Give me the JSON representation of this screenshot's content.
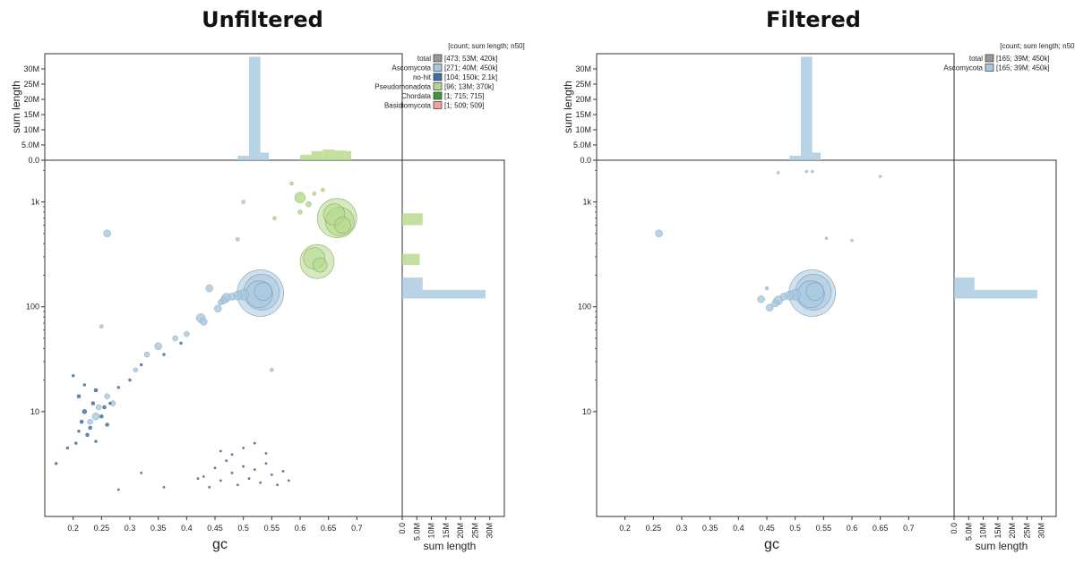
{
  "chart_data": [
    {
      "type": "scatter",
      "title": "Unfiltered",
      "xlabel": "gc",
      "ylabel": "",
      "top_hist_ylabel": "sum length",
      "right_hist_xlabel": "sum length",
      "x_ticks": [
        "0.2",
        "0.25",
        "0.3",
        "0.35",
        "0.4",
        "0.45",
        "0.5",
        "0.55",
        "0.6",
        "0.65",
        "0.7"
      ],
      "x_tick_values": [
        0.2,
        0.25,
        0.3,
        0.35,
        0.4,
        0.45,
        0.5,
        0.55,
        0.6,
        0.65,
        0.7
      ],
      "xlim": [
        0.15,
        0.78
      ],
      "y_scale": "log",
      "y_ticks": [
        "10",
        "100",
        "1k"
      ],
      "y_tick_values": [
        10,
        100,
        1000
      ],
      "ylim": [
        1,
        2500
      ],
      "hist_ticks": [
        "0.0",
        "5.0M",
        "10M",
        "15M",
        "20M",
        "25M",
        "30M"
      ],
      "hist_tick_values": [
        0,
        5,
        10,
        15,
        20,
        25,
        30
      ],
      "hist_lim_M": [
        0,
        35
      ],
      "legend": {
        "header": "[count; sum length; n50]",
        "entries": [
          {
            "name": "total",
            "stats": "[473; 53M; 420k]",
            "color": "#999999"
          },
          {
            "name": "Ascomycota",
            "stats": "[271; 40M; 450k]",
            "color": "#a6c8e0"
          },
          {
            "name": "no-hit",
            "stats": "[104; 150k; 2.1k]",
            "color": "#3f6fa8"
          },
          {
            "name": "Pseudomonadota",
            "stats": "[96; 13M; 370k]",
            "color": "#b5d88a"
          },
          {
            "name": "Chordata",
            "stats": "[1; 715; 715]",
            "color": "#3a9a3a"
          },
          {
            "name": "Basidiomycota",
            "stats": "[1; 509; 509]",
            "color": "#f0a0a0"
          }
        ]
      },
      "top_hist": [
        {
          "series": "Ascomycota",
          "color": "#a6c8e0",
          "bins": [
            [
              0.49,
              0.51,
              1.5
            ],
            [
              0.51,
              0.53,
              34
            ],
            [
              0.53,
              0.545,
              2.5
            ]
          ]
        },
        {
          "series": "Pseudomonadota",
          "color": "#b5d88a",
          "bins": [
            [
              0.6,
              0.62,
              1.8
            ],
            [
              0.62,
              0.64,
              3.0
            ],
            [
              0.64,
              0.66,
              3.5
            ],
            [
              0.66,
              0.68,
              3.2
            ],
            [
              0.68,
              0.69,
              3.0
            ]
          ]
        }
      ],
      "right_hist": [
        {
          "series": "Ascomycota",
          "color": "#a6c8e0",
          "bins": [
            [
              120,
              145,
              28.5
            ],
            [
              145,
              190,
              7
            ]
          ]
        },
        {
          "series": "Pseudomonadota",
          "color": "#b5d88a",
          "bins": [
            [
              250,
              320,
              6
            ],
            [
              600,
              780,
              7
            ]
          ]
        }
      ],
      "points": [
        {
          "gc": 0.53,
          "len": 135,
          "r": 26,
          "series": "Ascomycota"
        },
        {
          "gc": 0.532,
          "len": 138,
          "r": 20,
          "series": "Ascomycota"
        },
        {
          "gc": 0.528,
          "len": 132,
          "r": 15,
          "series": "Ascomycota"
        },
        {
          "gc": 0.535,
          "len": 140,
          "r": 10,
          "series": "Ascomycota"
        },
        {
          "gc": 0.5,
          "len": 130,
          "r": 6,
          "series": "Ascomycota"
        },
        {
          "gc": 0.49,
          "len": 128,
          "r": 5,
          "series": "Ascomycota"
        },
        {
          "gc": 0.48,
          "len": 125,
          "r": 4,
          "series": "Ascomycota"
        },
        {
          "gc": 0.47,
          "len": 122,
          "r": 5,
          "series": "Ascomycota"
        },
        {
          "gc": 0.465,
          "len": 115,
          "r": 4,
          "series": "Ascomycota"
        },
        {
          "gc": 0.46,
          "len": 110,
          "r": 3,
          "series": "Ascomycota"
        },
        {
          "gc": 0.44,
          "len": 150,
          "r": 4,
          "series": "Ascomycota"
        },
        {
          "gc": 0.455,
          "len": 96,
          "r": 4,
          "series": "Ascomycota"
        },
        {
          "gc": 0.425,
          "len": 78,
          "r": 5,
          "series": "Ascomycota"
        },
        {
          "gc": 0.43,
          "len": 72,
          "r": 4,
          "series": "Ascomycota"
        },
        {
          "gc": 0.26,
          "len": 500,
          "r": 4,
          "series": "Ascomycota"
        },
        {
          "gc": 0.35,
          "len": 42,
          "r": 4,
          "series": "Ascomycota"
        },
        {
          "gc": 0.4,
          "len": 55,
          "r": 3,
          "series": "Ascomycota"
        },
        {
          "gc": 0.38,
          "len": 50,
          "r": 3,
          "series": "Ascomycota"
        },
        {
          "gc": 0.33,
          "len": 35,
          "r": 3,
          "series": "Ascomycota"
        },
        {
          "gc": 0.31,
          "len": 25,
          "r": 2.5,
          "series": "Ascomycota"
        },
        {
          "gc": 0.24,
          "len": 9,
          "r": 4,
          "series": "Ascomycota"
        },
        {
          "gc": 0.245,
          "len": 11,
          "r": 3,
          "series": "Ascomycota"
        },
        {
          "gc": 0.23,
          "len": 8,
          "r": 3,
          "series": "Ascomycota"
        },
        {
          "gc": 0.26,
          "len": 14,
          "r": 3,
          "series": "Ascomycota"
        },
        {
          "gc": 0.27,
          "len": 12,
          "r": 3,
          "series": "Ascomycota"
        },
        {
          "gc": 0.25,
          "len": 65,
          "r": 2,
          "series": "Ascomycota"
        },
        {
          "gc": 0.5,
          "len": 1000,
          "r": 2,
          "series": "Ascomycota"
        },
        {
          "gc": 0.55,
          "len": 25,
          "r": 2,
          "series": "Ascomycota"
        },
        {
          "gc": 0.49,
          "len": 440,
          "r": 2,
          "series": "Ascomycota"
        },
        {
          "gc": 0.665,
          "len": 700,
          "r": 22,
          "series": "Pseudomonadota"
        },
        {
          "gc": 0.67,
          "len": 650,
          "r": 16,
          "series": "Pseudomonadota"
        },
        {
          "gc": 0.66,
          "len": 760,
          "r": 12,
          "series": "Pseudomonadota"
        },
        {
          "gc": 0.675,
          "len": 600,
          "r": 9,
          "series": "Pseudomonadota"
        },
        {
          "gc": 0.63,
          "len": 270,
          "r": 19,
          "series": "Pseudomonadota"
        },
        {
          "gc": 0.625,
          "len": 290,
          "r": 12,
          "series": "Pseudomonadota"
        },
        {
          "gc": 0.635,
          "len": 250,
          "r": 8,
          "series": "Pseudomonadota"
        },
        {
          "gc": 0.6,
          "len": 1100,
          "r": 6,
          "series": "Pseudomonadota"
        },
        {
          "gc": 0.615,
          "len": 950,
          "r": 3,
          "series": "Pseudomonadota"
        },
        {
          "gc": 0.6,
          "len": 800,
          "r": 2.5,
          "series": "Pseudomonadota"
        },
        {
          "gc": 0.625,
          "len": 1200,
          "r": 2,
          "series": "Pseudomonadota"
        },
        {
          "gc": 0.585,
          "len": 1500,
          "r": 2,
          "series": "Pseudomonadota"
        },
        {
          "gc": 0.64,
          "len": 1300,
          "r": 2,
          "series": "Pseudomonadota"
        },
        {
          "gc": 0.555,
          "len": 700,
          "r": 2,
          "series": "Pseudomonadota"
        },
        {
          "gc": 0.2,
          "len": 22,
          "r": 1.5,
          "series": "no-hit"
        },
        {
          "gc": 0.21,
          "len": 14,
          "r": 2,
          "series": "no-hit"
        },
        {
          "gc": 0.22,
          "len": 10,
          "r": 2.5,
          "series": "no-hit"
        },
        {
          "gc": 0.215,
          "len": 8,
          "r": 2,
          "series": "no-hit"
        },
        {
          "gc": 0.225,
          "len": 6,
          "r": 2,
          "series": "no-hit"
        },
        {
          "gc": 0.23,
          "len": 7,
          "r": 2,
          "series": "no-hit"
        },
        {
          "gc": 0.205,
          "len": 5,
          "r": 1.5,
          "series": "no-hit"
        },
        {
          "gc": 0.235,
          "len": 12,
          "r": 2,
          "series": "no-hit"
        },
        {
          "gc": 0.24,
          "len": 16,
          "r": 2,
          "series": "no-hit"
        },
        {
          "gc": 0.19,
          "len": 4.5,
          "r": 1.5,
          "series": "no-hit"
        },
        {
          "gc": 0.17,
          "len": 3.2,
          "r": 1.5,
          "series": "no-hit"
        },
        {
          "gc": 0.22,
          "len": 18,
          "r": 1.5,
          "series": "no-hit"
        },
        {
          "gc": 0.25,
          "len": 9,
          "r": 2,
          "series": "no-hit"
        },
        {
          "gc": 0.255,
          "len": 11,
          "r": 2,
          "series": "no-hit"
        },
        {
          "gc": 0.26,
          "len": 7.5,
          "r": 2,
          "series": "no-hit"
        },
        {
          "gc": 0.265,
          "len": 12,
          "r": 1.5,
          "series": "no-hit"
        },
        {
          "gc": 0.28,
          "len": 17,
          "r": 1.5,
          "series": "no-hit"
        },
        {
          "gc": 0.32,
          "len": 28,
          "r": 1.5,
          "series": "no-hit"
        },
        {
          "gc": 0.36,
          "len": 35,
          "r": 1.5,
          "series": "no-hit"
        },
        {
          "gc": 0.39,
          "len": 45,
          "r": 1.5,
          "series": "no-hit"
        },
        {
          "gc": 0.3,
          "len": 20,
          "r": 1.5,
          "series": "no-hit"
        },
        {
          "gc": 0.24,
          "len": 5.2,
          "r": 1.5,
          "series": "no-hit"
        },
        {
          "gc": 0.21,
          "len": 6.5,
          "r": 1.5,
          "series": "no-hit"
        },
        {
          "gc": 0.43,
          "len": 2.4,
          "r": 1.2,
          "series": "no-hit"
        },
        {
          "gc": 0.45,
          "len": 2.9,
          "r": 1.2,
          "series": "no-hit"
        },
        {
          "gc": 0.46,
          "len": 2.2,
          "r": 1.2,
          "series": "no-hit"
        },
        {
          "gc": 0.47,
          "len": 3.4,
          "r": 1.2,
          "series": "no-hit"
        },
        {
          "gc": 0.48,
          "len": 2.6,
          "r": 1.2,
          "series": "no-hit"
        },
        {
          "gc": 0.49,
          "len": 2.0,
          "r": 1.2,
          "series": "no-hit"
        },
        {
          "gc": 0.5,
          "len": 3.0,
          "r": 1.2,
          "series": "no-hit"
        },
        {
          "gc": 0.51,
          "len": 2.3,
          "r": 1.2,
          "series": "no-hit"
        },
        {
          "gc": 0.52,
          "len": 2.8,
          "r": 1.2,
          "series": "no-hit"
        },
        {
          "gc": 0.53,
          "len": 2.1,
          "r": 1.2,
          "series": "no-hit"
        },
        {
          "gc": 0.54,
          "len": 3.2,
          "r": 1.2,
          "series": "no-hit"
        },
        {
          "gc": 0.55,
          "len": 2.5,
          "r": 1.2,
          "series": "no-hit"
        },
        {
          "gc": 0.56,
          "len": 2.0,
          "r": 1.2,
          "series": "no-hit"
        },
        {
          "gc": 0.57,
          "len": 2.7,
          "r": 1.2,
          "series": "no-hit"
        },
        {
          "gc": 0.58,
          "len": 2.2,
          "r": 1.2,
          "series": "no-hit"
        },
        {
          "gc": 0.44,
          "len": 1.9,
          "r": 1.2,
          "series": "no-hit"
        },
        {
          "gc": 0.42,
          "len": 2.3,
          "r": 1.2,
          "series": "no-hit"
        },
        {
          "gc": 0.36,
          "len": 1.9,
          "r": 1.2,
          "series": "no-hit"
        },
        {
          "gc": 0.32,
          "len": 2.6,
          "r": 1.2,
          "series": "no-hit"
        },
        {
          "gc": 0.28,
          "len": 1.8,
          "r": 1.2,
          "series": "no-hit"
        },
        {
          "gc": 0.5,
          "len": 4.5,
          "r": 1.2,
          "series": "no-hit"
        },
        {
          "gc": 0.52,
          "len": 5.0,
          "r": 1.2,
          "series": "no-hit"
        },
        {
          "gc": 0.48,
          "len": 3.9,
          "r": 1.2,
          "series": "no-hit"
        },
        {
          "gc": 0.46,
          "len": 4.2,
          "r": 1.2,
          "series": "no-hit"
        },
        {
          "gc": 0.54,
          "len": 4.0,
          "r": 1.2,
          "series": "no-hit"
        }
      ]
    },
    {
      "type": "scatter",
      "title": "Filtered",
      "xlabel": "gc",
      "ylabel": "",
      "top_hist_ylabel": "sum length",
      "right_hist_xlabel": "sum length",
      "x_ticks": [
        "0.2",
        "0.25",
        "0.3",
        "0.35",
        "0.4",
        "0.45",
        "0.5",
        "0.55",
        "0.6",
        "0.65",
        "0.7"
      ],
      "x_tick_values": [
        0.2,
        0.25,
        0.3,
        0.35,
        0.4,
        0.45,
        0.5,
        0.55,
        0.6,
        0.65,
        0.7
      ],
      "xlim": [
        0.15,
        0.78
      ],
      "y_scale": "log",
      "y_ticks": [
        "10",
        "100",
        "1k"
      ],
      "y_tick_values": [
        10,
        100,
        1000
      ],
      "ylim": [
        1,
        2500
      ],
      "hist_ticks": [
        "0.0",
        "5.0M",
        "10M",
        "15M",
        "20M",
        "25M",
        "30M"
      ],
      "hist_tick_values": [
        0,
        5,
        10,
        15,
        20,
        25,
        30
      ],
      "hist_lim_M": [
        0,
        35
      ],
      "legend": {
        "header": "[count; sum length; n50]",
        "entries": [
          {
            "name": "total",
            "stats": "[165; 39M; 450k]",
            "color": "#999999"
          },
          {
            "name": "Ascomycota",
            "stats": "[165; 39M; 450k]",
            "color": "#a6c8e0"
          }
        ]
      },
      "top_hist": [
        {
          "series": "Ascomycota",
          "color": "#a6c8e0",
          "bins": [
            [
              0.49,
              0.51,
              1.5
            ],
            [
              0.51,
              0.53,
              34
            ],
            [
              0.53,
              0.545,
              2.5
            ]
          ]
        }
      ],
      "right_hist": [
        {
          "series": "Ascomycota",
          "color": "#a6c8e0",
          "bins": [
            [
              120,
              145,
              28.5
            ],
            [
              145,
              190,
              7
            ]
          ]
        }
      ],
      "points": [
        {
          "gc": 0.53,
          "len": 135,
          "r": 26,
          "series": "Ascomycota"
        },
        {
          "gc": 0.532,
          "len": 138,
          "r": 20,
          "series": "Ascomycota"
        },
        {
          "gc": 0.528,
          "len": 132,
          "r": 15,
          "series": "Ascomycota"
        },
        {
          "gc": 0.535,
          "len": 140,
          "r": 10,
          "series": "Ascomycota"
        },
        {
          "gc": 0.5,
          "len": 130,
          "r": 6,
          "series": "Ascomycota"
        },
        {
          "gc": 0.49,
          "len": 128,
          "r": 5,
          "series": "Ascomycota"
        },
        {
          "gc": 0.48,
          "len": 125,
          "r": 4,
          "series": "Ascomycota"
        },
        {
          "gc": 0.47,
          "len": 115,
          "r": 5,
          "series": "Ascomycota"
        },
        {
          "gc": 0.465,
          "len": 108,
          "r": 4,
          "series": "Ascomycota"
        },
        {
          "gc": 0.455,
          "len": 98,
          "r": 4,
          "series": "Ascomycota"
        },
        {
          "gc": 0.44,
          "len": 118,
          "r": 4,
          "series": "Ascomycota"
        },
        {
          "gc": 0.45,
          "len": 150,
          "r": 2,
          "series": "Ascomycota"
        },
        {
          "gc": 0.26,
          "len": 500,
          "r": 4,
          "series": "Ascomycota"
        },
        {
          "gc": 0.47,
          "len": 1900,
          "r": 1.5,
          "series": "Ascomycota"
        },
        {
          "gc": 0.52,
          "len": 1950,
          "r": 1.5,
          "series": "Ascomycota"
        },
        {
          "gc": 0.53,
          "len": 1950,
          "r": 1.5,
          "series": "Ascomycota"
        },
        {
          "gc": 0.65,
          "len": 1750,
          "r": 1.5,
          "series": "Ascomycota"
        },
        {
          "gc": 0.555,
          "len": 450,
          "r": 1.5,
          "series": "Ascomycota"
        },
        {
          "gc": 0.6,
          "len": 430,
          "r": 1.5,
          "series": "Ascomycota"
        }
      ]
    }
  ]
}
